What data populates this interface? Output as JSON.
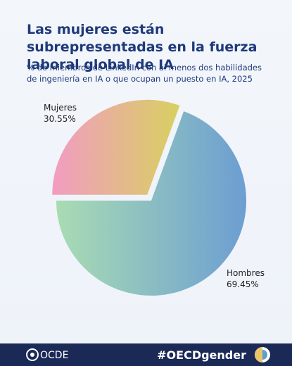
{
  "chart_data": {
    "type": "pie",
    "title": "Las mujeres están subrepresentadas en la fuerza laboral global de IA",
    "subtitle": "% de miembros de LinkedIn con al menos dos habilidades de ingeniería en IA o que ocupan un puesto en IA, 2025",
    "categories": [
      "Mujeres",
      "Hombres"
    ],
    "values": [
      30.55,
      69.45
    ],
    "value_labels": [
      "30.55%",
      "69.45%"
    ],
    "colors": [
      [
        "#f29cc2",
        "#d8d060"
      ],
      [
        "#a9dcb3",
        "#6c9ed2"
      ]
    ]
  },
  "footer": {
    "logo": "OCDE",
    "hashtag": "#OECDgender"
  }
}
